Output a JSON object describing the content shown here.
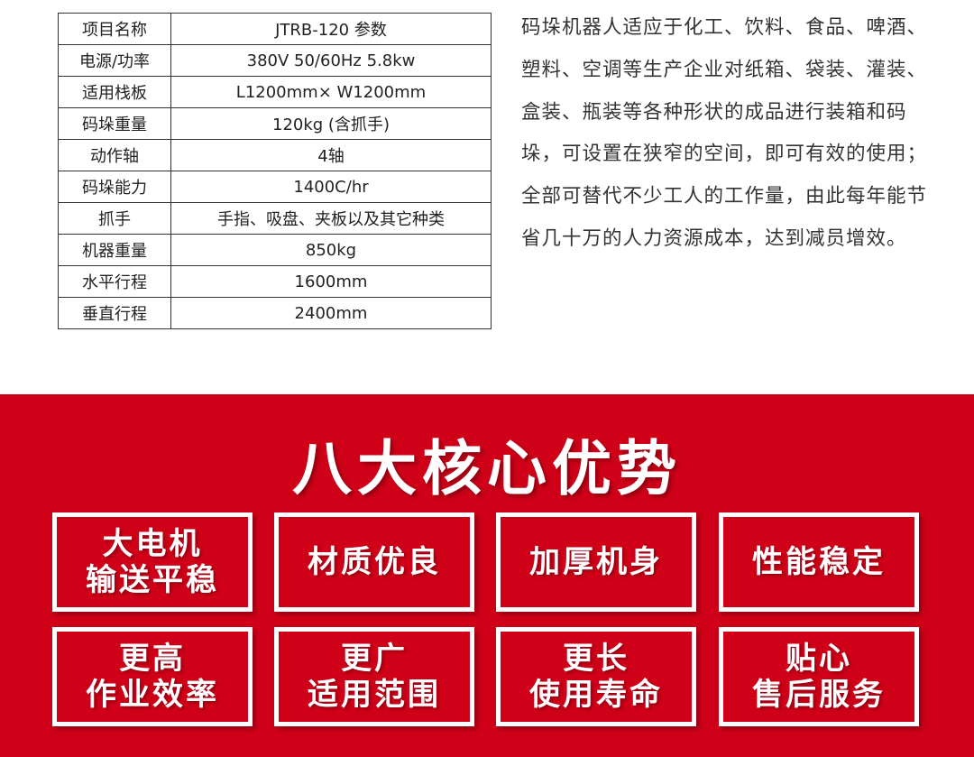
{
  "spec_table": [
    {
      "key": "项目名称",
      "value": "JTRB-120 参数"
    },
    {
      "key": "电源/功率",
      "value": "380V 50/60Hz 5.8kw"
    },
    {
      "key": "适用栈板",
      "value": "L1200mm× W1200mm"
    },
    {
      "key": "码垛重量",
      "value": "120kg (含抓手)"
    },
    {
      "key": "动作轴",
      "value": "4轴"
    },
    {
      "key": "码垛能力",
      "value": "1400C/hr"
    },
    {
      "key": "抓手",
      "value": "手指、吸盘、夹板以及其它种类"
    },
    {
      "key": "机器重量",
      "value": "850kg"
    },
    {
      "key": "水平行程",
      "value": "1600mm"
    },
    {
      "key": "垂直行程",
      "value": "2400mm"
    }
  ],
  "description": "码垛机器人适应于化工、饮料、食品、啤酒、塑料、空调等生产企业对纸箱、袋装、灌装、盒装、瓶装等各种形状的成品进行装箱和码垛，可设置在狭窄的空间，即可有效的使用；全部可替代不少工人的工作量，由此每年能节省几十万的人力资源成本，达到减员增效。",
  "advantages": {
    "title": "八大核心优势",
    "items": [
      {
        "line1": "大电机",
        "line2": "输送平稳"
      },
      {
        "line1": "材质优良",
        "line2": ""
      },
      {
        "line1": "加厚机身",
        "line2": ""
      },
      {
        "line1": "性能稳定",
        "line2": ""
      },
      {
        "line1": "更高",
        "line2": "作业效率"
      },
      {
        "line1": "更广",
        "line2": "适用范围"
      },
      {
        "line1": "更长",
        "line2": "使用寿命"
      },
      {
        "line1": "贴心",
        "line2": "售后服务"
      }
    ]
  },
  "colors": {
    "brand_red": "#cf0018"
  }
}
